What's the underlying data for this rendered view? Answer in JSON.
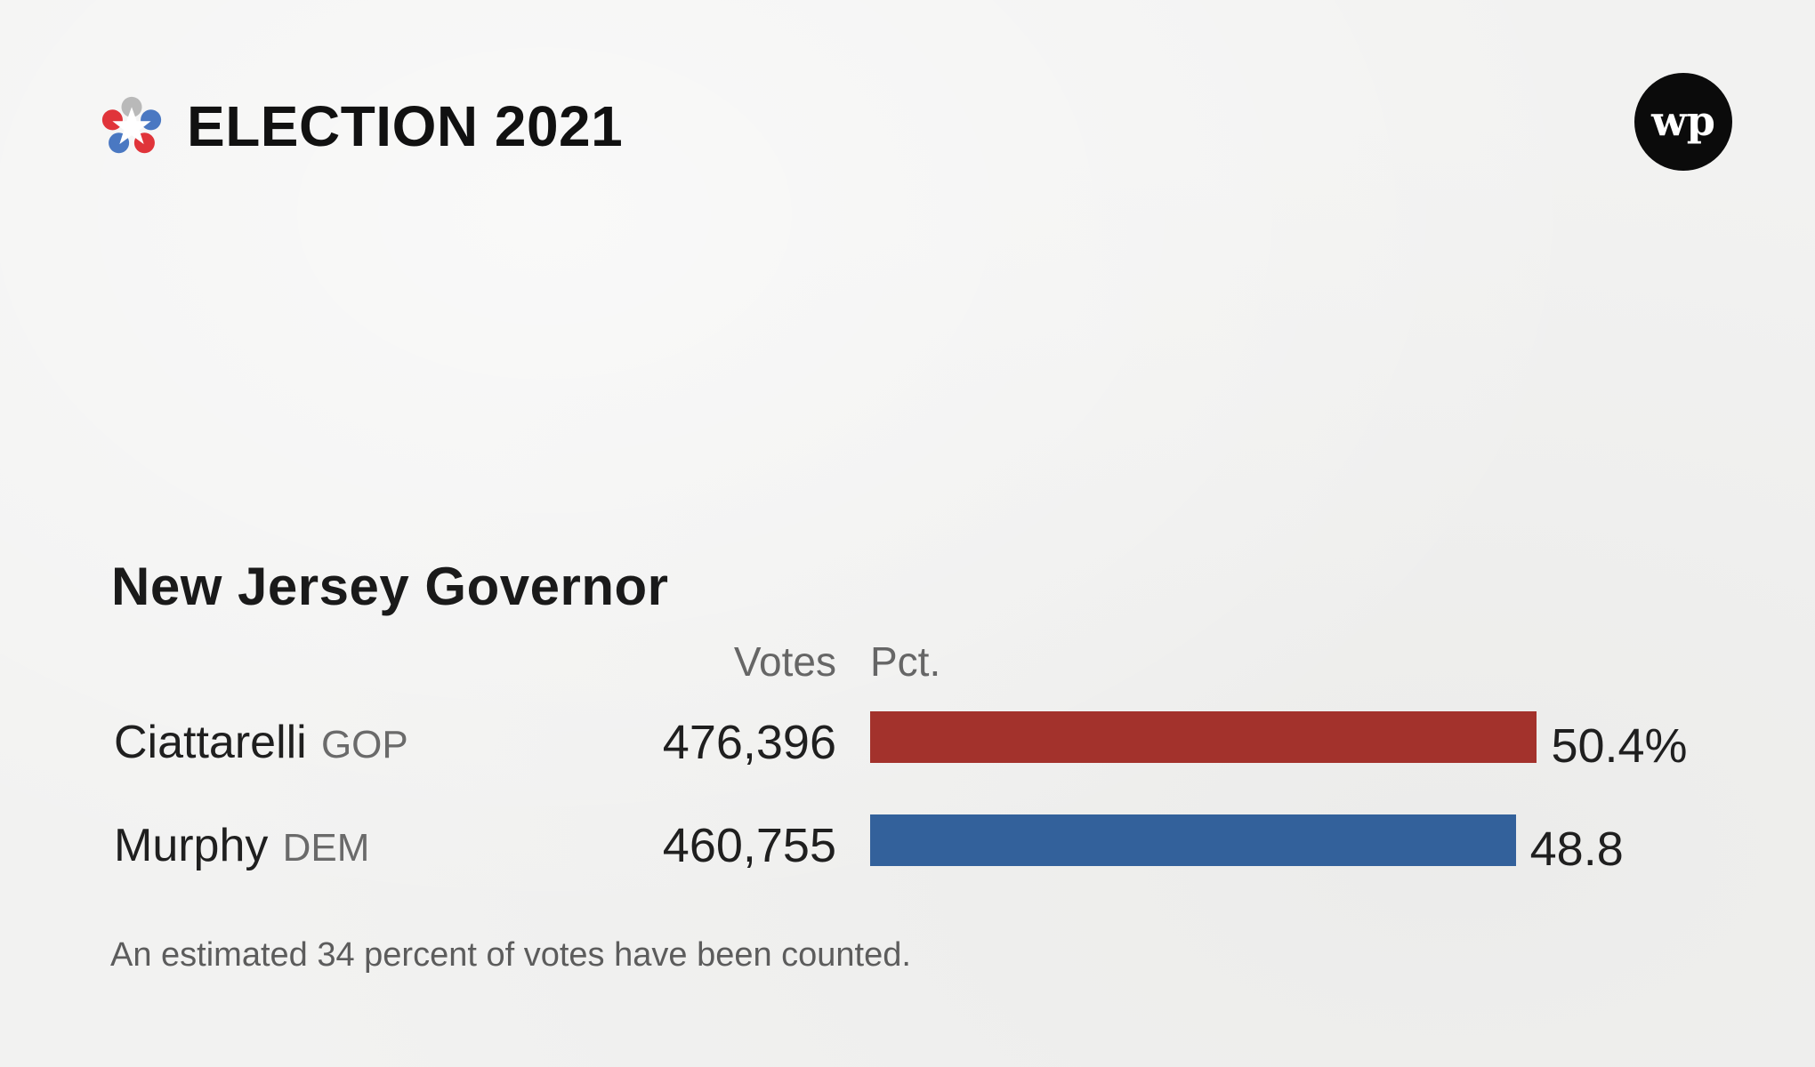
{
  "header": {
    "title": "ELECTION 2021",
    "logo_icon": "election-star-icon",
    "publisher_icon": "washington-post-wp-icon",
    "publisher_logo_text": "wp"
  },
  "colors": {
    "gop": "#a3322c",
    "dem": "#33619b",
    "logo_red": "#e0343a",
    "logo_blue": "#4a78c2",
    "logo_gray": "#b9b9b9"
  },
  "race": {
    "title": "New Jersey Governor",
    "votes_header": "Votes",
    "pct_header": "Pct.",
    "footnote": "An estimated 34 percent of votes have been counted."
  },
  "chart_data": {
    "type": "bar",
    "orientation": "horizontal",
    "title": "New Jersey Governor",
    "categories": [
      "Ciattarelli",
      "Murphy"
    ],
    "parties": [
      "GOP",
      "DEM"
    ],
    "votes": [
      "476,396",
      "460,755"
    ],
    "values": [
      50.4,
      48.8
    ],
    "value_labels": [
      "50.4%",
      "48.8"
    ],
    "xlim": [
      0,
      66
    ],
    "grid": false,
    "legend": "none"
  }
}
